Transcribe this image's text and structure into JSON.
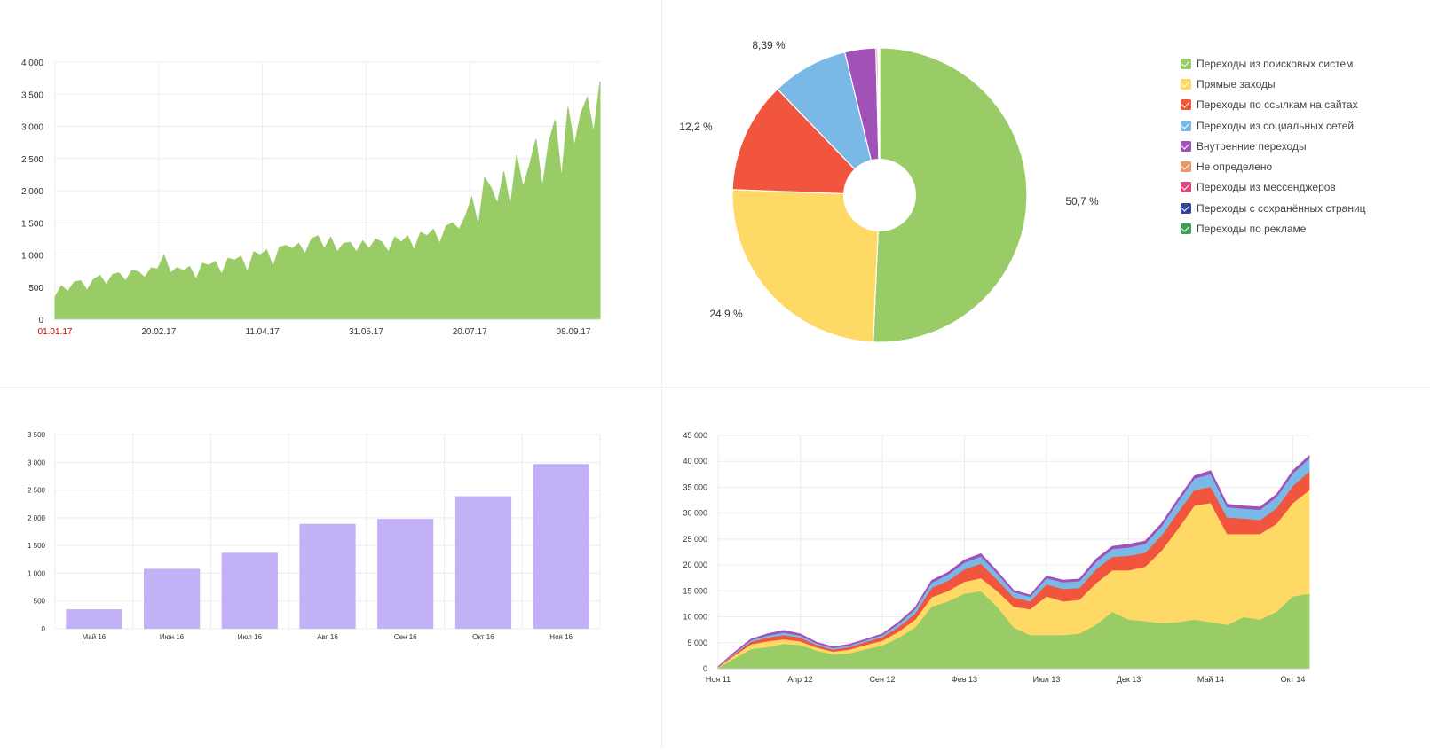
{
  "chart_data": [
    {
      "type": "area",
      "title": "",
      "color": "#99CC66",
      "ylim": [
        0,
        4000
      ],
      "yticks": [
        0,
        500,
        1000,
        1500,
        2000,
        2500,
        3000,
        3500,
        4000
      ],
      "ytick_labels": [
        "0",
        "500",
        "1 000",
        "1 500",
        "2 000",
        "2 500",
        "3 000",
        "3 500",
        "4 000"
      ],
      "xticks": [
        "01.01.17",
        "20.02.17",
        "11.04.17",
        "31.05.17",
        "20.07.17",
        "08.09.17"
      ],
      "first_tick_color": "#CC0000",
      "x": [
        "01.01.17",
        "04.01.17",
        "07.01.17",
        "10.01.17",
        "13.01.17",
        "16.01.17",
        "19.01.17",
        "22.01.17",
        "25.01.17",
        "28.01.17",
        "31.01.17",
        "03.02.17",
        "06.02.17",
        "09.02.17",
        "12.02.17",
        "15.02.17",
        "18.02.17",
        "21.02.17",
        "24.02.17",
        "27.02.17",
        "02.03.17",
        "05.03.17",
        "08.03.17",
        "11.03.17",
        "14.03.17",
        "17.03.17",
        "20.03.17",
        "23.03.17",
        "26.03.17",
        "29.03.17",
        "01.04.17",
        "04.04.17",
        "07.04.17",
        "10.04.17",
        "13.04.17",
        "16.04.17",
        "19.04.17",
        "22.04.17",
        "25.04.17",
        "28.04.17",
        "01.05.17",
        "04.05.17",
        "07.05.17",
        "10.05.17",
        "13.05.17",
        "16.05.17",
        "19.05.17",
        "22.05.17",
        "25.05.17",
        "28.05.17",
        "31.05.17",
        "03.06.17",
        "06.06.17",
        "09.06.17",
        "12.06.17",
        "15.06.17",
        "18.06.17",
        "21.06.17",
        "24.06.17",
        "27.06.17",
        "30.06.17",
        "03.07.17",
        "06.07.17",
        "09.07.17",
        "12.07.17",
        "15.07.17",
        "18.07.17",
        "21.07.17",
        "24.07.17",
        "27.07.17",
        "30.07.17",
        "02.08.17",
        "05.08.17",
        "08.08.17",
        "11.08.17",
        "14.08.17",
        "17.08.17",
        "20.08.17",
        "23.08.17",
        "26.08.17",
        "29.08.17",
        "01.09.17",
        "04.09.17",
        "07.09.17",
        "10.09.17",
        "13.09.17"
      ],
      "values": [
        350,
        520,
        430,
        580,
        600,
        450,
        620,
        680,
        540,
        700,
        720,
        600,
        760,
        740,
        650,
        800,
        780,
        1000,
        720,
        800,
        760,
        820,
        620,
        870,
        840,
        900,
        700,
        950,
        920,
        980,
        740,
        1050,
        1000,
        1080,
        820,
        1120,
        1150,
        1100,
        1180,
        1020,
        1250,
        1300,
        1100,
        1280,
        1050,
        1180,
        1200,
        1050,
        1220,
        1100,
        1250,
        1200,
        1050,
        1280,
        1200,
        1300,
        1080,
        1350,
        1300,
        1400,
        1180,
        1450,
        1500,
        1400,
        1600,
        1900,
        1450,
        2200,
        2050,
        1800,
        2300,
        1750,
        2550,
        2050,
        2400,
        2800,
        2050,
        2750,
        3100,
        2200,
        3300,
        2700,
        3200,
        3450,
        2900,
        3700
      ]
    },
    {
      "type": "pie",
      "title": "",
      "slices": [
        {
          "label": "Переходы из поисковых систем",
          "value": 50.7,
          "value_label": "50,7 %",
          "color": "#99CC66"
        },
        {
          "label": "Прямые заходы",
          "value": 24.9,
          "value_label": "24,9 %",
          "color": "#FFD966"
        },
        {
          "label": "Переходы по ссылкам на сайтах",
          "value": 12.2,
          "value_label": "12,2 %",
          "color": "#F2553D"
        },
        {
          "label": "Переходы из социальных сетей",
          "value": 8.39,
          "value_label": "8,39 %",
          "color": "#7AB8E6"
        },
        {
          "label": "Внутренние переходы",
          "value": 3.4,
          "value_label": "",
          "color": "#A052B8"
        },
        {
          "label": "Не определено",
          "value": 0.2,
          "value_label": "",
          "color": "#E69966"
        },
        {
          "label": "Переходы из мессенджеров",
          "value": 0.1,
          "value_label": "",
          "color": "#E0457B"
        },
        {
          "label": "Переходы с сохранённых страниц",
          "value": 0.07,
          "value_label": "",
          "color": "#334499"
        },
        {
          "label": "Переходы по рекламе",
          "value": 0.04,
          "value_label": "",
          "color": "#3E9E5A"
        }
      ],
      "legend": "right"
    },
    {
      "type": "bar",
      "title": "",
      "color": "#C3B1F7",
      "categories": [
        "Май 16",
        "Июн 16",
        "Июл 16",
        "Авг 16",
        "Сен 16",
        "Окт 16",
        "Ноя 16"
      ],
      "values": [
        350,
        1080,
        1370,
        1890,
        1980,
        2390,
        2970
      ],
      "ylim": [
        0,
        3500
      ],
      "yticks": [
        0,
        500,
        1000,
        1500,
        2000,
        2500,
        3000,
        3500
      ],
      "ytick_labels": [
        "0",
        "500",
        "1 000",
        "1 500",
        "2 000",
        "2 500",
        "3 000",
        "3 500"
      ]
    },
    {
      "type": "area",
      "stacked": true,
      "title": "",
      "ylim": [
        0,
        45000
      ],
      "yticks": [
        0,
        5000,
        10000,
        15000,
        20000,
        25000,
        30000,
        35000,
        40000,
        45000
      ],
      "ytick_labels": [
        "0",
        "5 000",
        "10 000",
        "15 000",
        "20 000",
        "25 000",
        "30 000",
        "35 000",
        "40 000",
        "45 000"
      ],
      "xticks": [
        "Ноя 11",
        "Апр 12",
        "Сен 12",
        "Фев 13",
        "Июл 13",
        "Дек 13",
        "Май 14",
        "Окт 14"
      ],
      "x": [
        "Ноя 11",
        "Дек 11",
        "Янв 12",
        "Фев 12",
        "Мар 12",
        "Апр 12",
        "Май 12",
        "Июн 12",
        "Июл 12",
        "Авг 12",
        "Сен 12",
        "Окт 12",
        "Ноя 12",
        "Дек 12",
        "Янв 13",
        "Фев 13",
        "Мар 13",
        "Апр 13",
        "Май 13",
        "Июн 13",
        "Июл 13",
        "Авг 13",
        "Сен 13",
        "Окт 13",
        "Ноя 13",
        "Дек 13",
        "Янв 14",
        "Фев 14",
        "Мар 14",
        "Апр 14",
        "Май 14",
        "Июн 14",
        "Июл 14",
        "Авг 14",
        "Сен 14",
        "Окт 14",
        "Ноя 14"
      ],
      "series": [
        {
          "color": "#99CC66",
          "values": [
            200,
            2000,
            3800,
            4200,
            4800,
            4600,
            3500,
            2800,
            3000,
            3800,
            4500,
            6000,
            8000,
            12000,
            13000,
            14500,
            15000,
            12000,
            8000,
            6500,
            6500,
            6500,
            6800,
            8500,
            11000,
            9500,
            9200,
            8800,
            9000,
            9500,
            9000,
            8500,
            10000,
            9500,
            11000,
            14000,
            14500
          ]
        },
        {
          "color": "#FFD966",
          "values": [
            100,
            600,
            900,
            1100,
            900,
            700,
            600,
            500,
            700,
            800,
            900,
            1200,
            1500,
            1800,
            2000,
            2300,
            2500,
            3000,
            4000,
            5000,
            7500,
            6500,
            6500,
            8000,
            8000,
            9500,
            10500,
            14000,
            18000,
            22000,
            23000,
            17500,
            16000,
            16500,
            17000,
            18000,
            20000
          ]
        },
        {
          "color": "#F2553D",
          "values": [
            50,
            300,
            500,
            700,
            800,
            700,
            500,
            400,
            500,
            600,
            700,
            900,
            1200,
            1800,
            2000,
            2400,
            2800,
            2200,
            1800,
            1500,
            2300,
            2400,
            2300,
            2700,
            2600,
            2800,
            2700,
            2900,
            3200,
            3000,
            3100,
            3200,
            3000,
            2700,
            3000,
            3300,
            3600
          ]
        },
        {
          "color": "#7AB8E6",
          "values": [
            30,
            200,
            300,
            400,
            500,
            400,
            300,
            300,
            300,
            300,
            400,
            600,
            800,
            1000,
            1200,
            1300,
            1400,
            1200,
            1000,
            900,
            1200,
            1300,
            1300,
            1400,
            1500,
            1600,
            1700,
            1800,
            2000,
            2200,
            2500,
            2000,
            1900,
            2000,
            2100,
            2400,
            2500
          ]
        },
        {
          "color": "#A052B8",
          "values": [
            20,
            100,
            200,
            300,
            400,
            300,
            200,
            200,
            200,
            200,
            200,
            300,
            300,
            400,
            400,
            500,
            500,
            400,
            300,
            300,
            400,
            400,
            400,
            500,
            500,
            600,
            500,
            500,
            500,
            500,
            600,
            500,
            500,
            500,
            500,
            500,
            500
          ]
        }
      ]
    }
  ]
}
